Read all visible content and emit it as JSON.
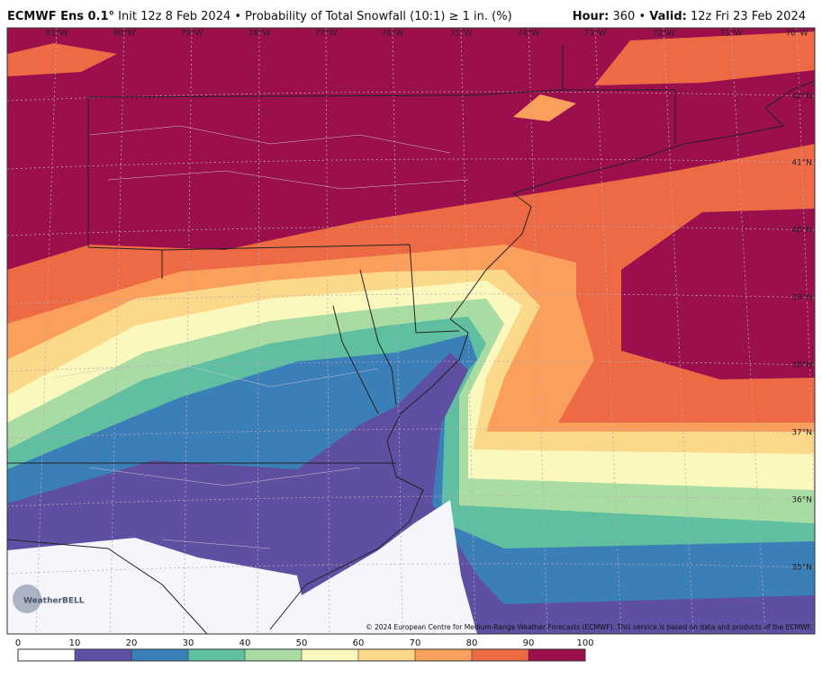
{
  "header": {
    "model": "ECMWF Ens 0.1°",
    "description": "Init 12z 8 Feb 2024 • Probability of Total Snowfall (10:1) ≥ 1 in. (%)",
    "hour_label": "Hour:",
    "hour": "360 •",
    "valid_label": "Valid:",
    "valid": "12z Fri 23 Feb 2024"
  },
  "longitudes": [
    "81°W",
    "80°W",
    "79°W",
    "78°W",
    "77°W",
    "76°W",
    "75°W",
    "74°W",
    "73°W",
    "72°W",
    "71°W",
    "70°W"
  ],
  "latitudes": [
    "42°N",
    "41°N",
    "40°N",
    "39°N",
    "38°N",
    "37°N",
    "36°N",
    "35°N"
  ],
  "logo": "WeatherBELL",
  "copyright": "© 2024 European Centre for Medium-Range Weather Forecasts (ECMWF). This service is based on data and products of the ECMWF.",
  "legend": {
    "ticks": [
      0,
      10,
      20,
      30,
      40,
      50,
      60,
      70,
      80,
      90,
      100
    ],
    "colors": [
      "#ffffff",
      "#5e4fa2",
      "#3a7fb8",
      "#5fbfa0",
      "#a9dca3",
      "#fbf8bd",
      "#fcd98a",
      "#fa9f5c",
      "#ee6a45",
      "#9a0f4c"
    ]
  }
}
